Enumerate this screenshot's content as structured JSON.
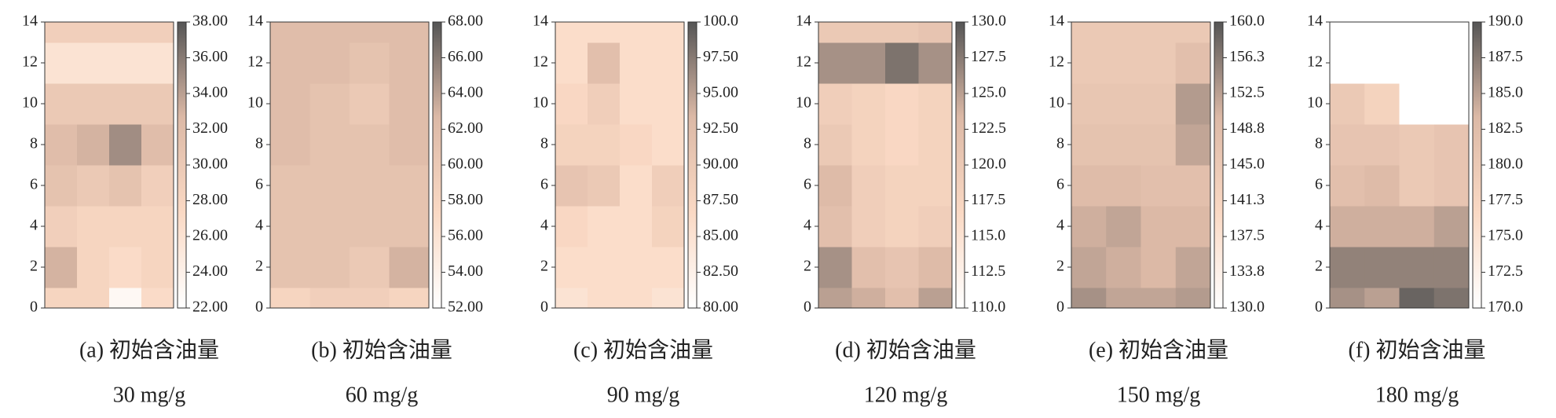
{
  "chart_data": [
    {
      "type": "heatmap",
      "caption": "(a) 初始含油量",
      "subcaption": "30 mg/g",
      "ylim": [
        0,
        14
      ],
      "yticks": [
        0,
        2,
        4,
        6,
        8,
        10,
        12,
        14
      ],
      "y": [
        0,
        2,
        4,
        6,
        8,
        10,
        12,
        14
      ],
      "z": [
        [
          28,
          28,
          23,
          27
        ],
        [
          33,
          28,
          27,
          28
        ],
        [
          29,
          28,
          28,
          28
        ],
        [
          31,
          30,
          31,
          29
        ],
        [
          32,
          33,
          35,
          32
        ],
        [
          30,
          30,
          30,
          30
        ],
        [
          26,
          26,
          26,
          26
        ],
        [
          29,
          29,
          29,
          29
        ]
      ],
      "zlim": [
        22,
        38
      ],
      "colormap": [
        "#ffffff",
        "#fad9c4",
        "#dcb9a6",
        "#555555"
      ],
      "zticks": [
        {
          "value": 22,
          "label": "22.00"
        },
        {
          "value": 24,
          "label": "24.00"
        },
        {
          "value": 26,
          "label": "26.00"
        },
        {
          "value": 28,
          "label": "28.00"
        },
        {
          "value": 30,
          "label": "30.00"
        },
        {
          "value": 32,
          "label": "32.00"
        },
        {
          "value": 34,
          "label": "34.00"
        },
        {
          "value": 36,
          "label": "36.00"
        },
        {
          "value": 38,
          "label": "38.00"
        }
      ]
    },
    {
      "type": "heatmap",
      "caption": "(b) 初始含油量",
      "subcaption": "60 mg/g",
      "ylim": [
        0,
        14
      ],
      "yticks": [
        0,
        2,
        4,
        6,
        8,
        10,
        12,
        14
      ],
      "y": [
        0,
        2,
        4,
        6,
        8,
        10,
        12,
        14
      ],
      "z": [
        [
          58,
          59,
          59,
          58
        ],
        [
          61,
          61,
          60,
          63
        ],
        [
          61,
          61,
          61,
          61
        ],
        [
          61,
          61,
          61,
          61
        ],
        [
          62,
          61,
          61,
          62
        ],
        [
          62,
          61,
          60,
          62
        ],
        [
          62,
          62,
          61,
          62
        ],
        [
          62,
          62,
          62,
          62
        ]
      ],
      "zlim": [
        52,
        68
      ],
      "colormap": [
        "#ffffff",
        "#fad9c4",
        "#dcb9a6",
        "#555555"
      ],
      "zticks": [
        {
          "value": 52,
          "label": "52.00"
        },
        {
          "value": 54,
          "label": "54.00"
        },
        {
          "value": 56,
          "label": "56.00"
        },
        {
          "value": 58,
          "label": "58.00"
        },
        {
          "value": 60,
          "label": "60.00"
        },
        {
          "value": 62,
          "label": "62.00"
        },
        {
          "value": 64,
          "label": "64.00"
        },
        {
          "value": 66,
          "label": "66.00"
        },
        {
          "value": 68,
          "label": "68.00"
        }
      ]
    },
    {
      "type": "heatmap",
      "caption": "(c) 初始含油量",
      "subcaption": "90 mg/g",
      "ylim": [
        0,
        14
      ],
      "yticks": [
        0,
        2,
        4,
        6,
        8,
        10,
        12,
        14
      ],
      "y": [
        0,
        2,
        4,
        6,
        8,
        10,
        12,
        14
      ],
      "z": [
        [
          85,
          86,
          86,
          85
        ],
        [
          86,
          86,
          86,
          86
        ],
        [
          87,
          86,
          86,
          88
        ],
        [
          91,
          90,
          86,
          89
        ],
        [
          88,
          88,
          87,
          86
        ],
        [
          87,
          89,
          86,
          86
        ],
        [
          86,
          92,
          86,
          86
        ],
        [
          86,
          86,
          86,
          86
        ]
      ],
      "zlim": [
        80,
        100
      ],
      "colormap": [
        "#ffffff",
        "#fad9c4",
        "#dcb9a6",
        "#555555"
      ],
      "zticks": [
        {
          "value": 80,
          "label": "80.00"
        },
        {
          "value": 82.5,
          "label": "82.50"
        },
        {
          "value": 85,
          "label": "85.00"
        },
        {
          "value": 87.5,
          "label": "87.50"
        },
        {
          "value": 90,
          "label": "90.00"
        },
        {
          "value": 92.5,
          "label": "92.50"
        },
        {
          "value": 95,
          "label": "95.00"
        },
        {
          "value": 97.5,
          "label": "97.50"
        },
        {
          "value": 100,
          "label": "100.0"
        }
      ]
    },
    {
      "type": "heatmap",
      "caption": "(d) 初始含油量",
      "subcaption": "120 mg/g",
      "ylim": [
        0,
        14
      ],
      "yticks": [
        0,
        2,
        4,
        6,
        8,
        10,
        12,
        14
      ],
      "y": [
        0,
        2,
        4,
        6,
        8,
        10,
        12,
        14
      ],
      "z": [
        [
          125,
          124,
          122,
          125
        ],
        [
          126,
          122,
          121,
          123
        ],
        [
          122,
          119,
          118,
          119
        ],
        [
          123,
          119,
          118,
          118
        ],
        [
          120,
          118,
          117,
          118
        ],
        [
          119,
          118,
          117,
          118
        ],
        [
          126,
          126,
          128,
          126
        ],
        [
          120,
          120,
          120,
          121
        ]
      ],
      "zlim": [
        110,
        130
      ],
      "colormap": [
        "#ffffff",
        "#fad9c4",
        "#dcb9a6",
        "#555555"
      ],
      "zticks": [
        {
          "value": 110,
          "label": "110.0"
        },
        {
          "value": 112.5,
          "label": "112.5"
        },
        {
          "value": 115,
          "label": "115.0"
        },
        {
          "value": 117.5,
          "label": "117.5"
        },
        {
          "value": 120,
          "label": "120.0"
        },
        {
          "value": 122.5,
          "label": "122.5"
        },
        {
          "value": 125,
          "label": "125.0"
        },
        {
          "value": 127.5,
          "label": "127.5"
        },
        {
          "value": 130,
          "label": "130.0"
        }
      ]
    },
    {
      "type": "heatmap",
      "caption": "(e) 初始含油量",
      "subcaption": "150 mg/g",
      "ylim": [
        0,
        14
      ],
      "yticks": [
        0,
        2,
        4,
        6,
        8,
        10,
        12,
        14
      ],
      "y": [
        0,
        2,
        4,
        6,
        8,
        10,
        12,
        14
      ],
      "z": [
        [
          154,
          152,
          152,
          153
        ],
        [
          152,
          151,
          150,
          152
        ],
        [
          151,
          152,
          150,
          150
        ],
        [
          149,
          149,
          148,
          148
        ],
        [
          147,
          147,
          147,
          152
        ],
        [
          146,
          146,
          146,
          153
        ],
        [
          145,
          145,
          145,
          148
        ],
        [
          145,
          145,
          145,
          145
        ]
      ],
      "zlim": [
        130,
        160
      ],
      "colormap": [
        "#ffffff",
        "#fad9c4",
        "#dcb9a6",
        "#555555"
      ],
      "zticks": [
        {
          "value": 130,
          "label": "130.0"
        },
        {
          "value": 133.75,
          "label": "133.8"
        },
        {
          "value": 137.5,
          "label": "137.5"
        },
        {
          "value": 141.25,
          "label": "141.3"
        },
        {
          "value": 145,
          "label": "145.0"
        },
        {
          "value": 148.75,
          "label": "148.8"
        },
        {
          "value": 152.5,
          "label": "152.5"
        },
        {
          "value": 156.25,
          "label": "156.3"
        },
        {
          "value": 160,
          "label": "160.0"
        }
      ]
    },
    {
      "type": "heatmap",
      "caption": "(f) 初始含油量",
      "subcaption": "180 mg/g",
      "ylim": [
        0,
        14
      ],
      "yticks": [
        0,
        2,
        4,
        6,
        8,
        10,
        12,
        14
      ],
      "y": [
        0,
        2,
        4,
        6,
        8,
        10,
        12,
        14
      ],
      "z": [
        [
          186,
          185,
          189,
          188
        ],
        [
          187,
          187,
          187,
          187
        ],
        [
          184,
          184,
          184,
          185
        ],
        [
          182,
          183,
          180,
          181
        ],
        [
          181,
          181,
          180,
          181
        ],
        [
          180,
          178,
          170,
          170
        ],
        [
          170,
          170,
          170,
          170
        ],
        [
          170,
          170,
          170,
          170
        ]
      ],
      "zlim": [
        170,
        190
      ],
      "colormap": [
        "#ffffff",
        "#fad9c4",
        "#dcb9a6",
        "#555555"
      ],
      "zticks": [
        {
          "value": 170,
          "label": "170.0"
        },
        {
          "value": 172.5,
          "label": "172.5"
        },
        {
          "value": 175,
          "label": "175.0"
        },
        {
          "value": 177.5,
          "label": "177.5"
        },
        {
          "value": 180,
          "label": "180.0"
        },
        {
          "value": 182.5,
          "label": "182.5"
        },
        {
          "value": 185,
          "label": "185.0"
        },
        {
          "value": 187.5,
          "label": "187.5"
        },
        {
          "value": 190,
          "label": "190.0"
        }
      ]
    }
  ]
}
